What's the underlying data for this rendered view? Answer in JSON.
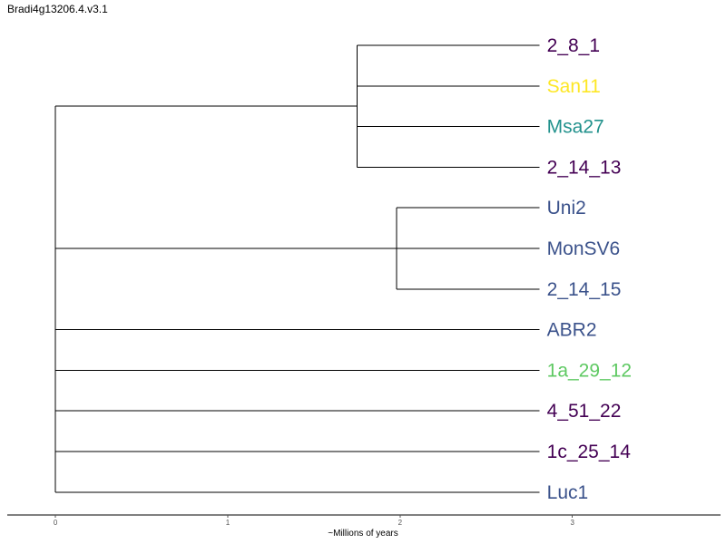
{
  "title": "Bradi4g13206.4.v3.1",
  "chart_data": {
    "type": "dendrogram",
    "title": "Bradi4g13206.4.v3.1",
    "xlabel": "~Millions of years",
    "xticks": [
      0,
      1,
      2,
      3
    ],
    "xlim": [
      -0.28,
      3.86
    ],
    "tree": {
      "height": 0,
      "children": [
        {
          "height": 1.75,
          "children": [
            {
              "label": "2_8_1",
              "color": "#440154"
            },
            {
              "label": "San11",
              "color": "#fde725"
            },
            {
              "label": "Msa27",
              "color": "#21918c"
            },
            {
              "label": "2_14_13",
              "color": "#440154"
            }
          ]
        },
        {
          "height": 1.98,
          "children": [
            {
              "label": "Uni2",
              "color": "#3b528b"
            },
            {
              "label": "MonSV6",
              "color": "#3b528b"
            },
            {
              "label": "2_14_15",
              "color": "#3b528b"
            }
          ]
        },
        {
          "label": "ABR2",
          "color": "#3b528b"
        },
        {
          "label": "1a_29_12",
          "color": "#5ec962"
        },
        {
          "label": "4_51_22",
          "color": "#440154"
        },
        {
          "label": "1c_25_14",
          "color": "#440154"
        },
        {
          "label": "Luc1",
          "color": "#3b528b"
        }
      ]
    },
    "leaf_height": 2.81
  }
}
